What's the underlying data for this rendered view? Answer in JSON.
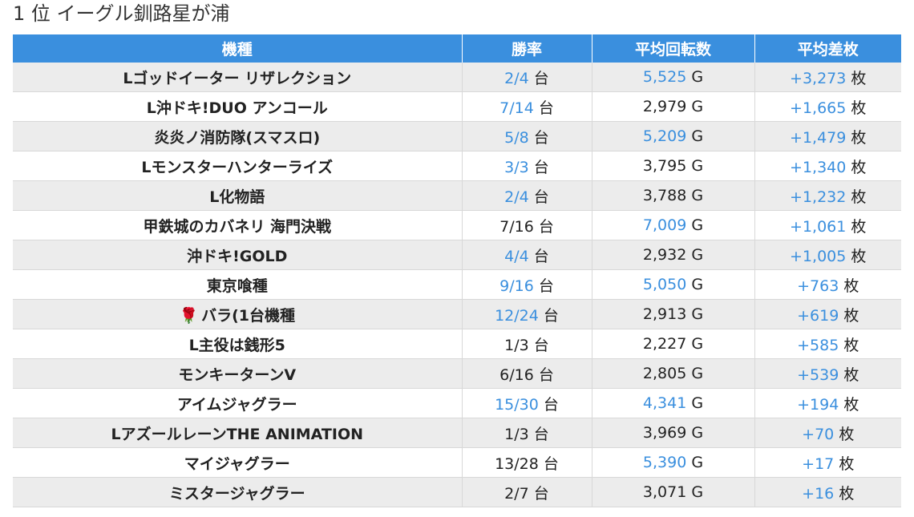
{
  "title": "1 位 イーグル釧路星が浦",
  "colors": {
    "header_bg": "#3a8fde",
    "highlight": "#3a8fde",
    "row_alt": "#ececec"
  },
  "table": {
    "headers": [
      "機種",
      "勝率",
      "平均回転数",
      "平均差枚"
    ],
    "units": {
      "win": "台",
      "spin": "G",
      "diff": "枚"
    },
    "rows": [
      {
        "model": "Lゴッドイーター リザレクション",
        "win": "2/4",
        "win_hl": true,
        "spin": "5,525",
        "spin_hl": true,
        "diff": "+3,273",
        "diff_hl": true
      },
      {
        "model": "L沖ドキ!DUO アンコール",
        "win": "7/14",
        "win_hl": true,
        "spin": "2,979",
        "spin_hl": false,
        "diff": "+1,665",
        "diff_hl": true
      },
      {
        "model": "炎炎ノ消防隊(スマスロ)",
        "win": "5/8",
        "win_hl": true,
        "spin": "5,209",
        "spin_hl": true,
        "diff": "+1,479",
        "diff_hl": true
      },
      {
        "model": "Lモンスターハンターライズ",
        "win": "3/3",
        "win_hl": true,
        "spin": "3,795",
        "spin_hl": false,
        "diff": "+1,340",
        "diff_hl": true
      },
      {
        "model": "L化物語",
        "win": "2/4",
        "win_hl": true,
        "spin": "3,788",
        "spin_hl": false,
        "diff": "+1,232",
        "diff_hl": true
      },
      {
        "model": "甲鉄城のカバネリ 海門決戦",
        "win": "7/16",
        "win_hl": false,
        "spin": "7,009",
        "spin_hl": true,
        "diff": "+1,061",
        "diff_hl": true
      },
      {
        "model": "沖ドキ!GOLD",
        "win": "4/4",
        "win_hl": true,
        "spin": "2,932",
        "spin_hl": false,
        "diff": "+1,005",
        "diff_hl": true
      },
      {
        "model": "東京喰種",
        "win": "9/16",
        "win_hl": true,
        "spin": "5,050",
        "spin_hl": true,
        "diff": "+763",
        "diff_hl": true
      },
      {
        "model": "バラ(1台機種",
        "rose_icon": "🌹",
        "win": "12/24",
        "win_hl": true,
        "spin": "2,913",
        "spin_hl": false,
        "diff": "+619",
        "diff_hl": true
      },
      {
        "model": "L主役は銭形5",
        "win": "1/3",
        "win_hl": false,
        "spin": "2,227",
        "spin_hl": false,
        "diff": "+585",
        "diff_hl": true
      },
      {
        "model": "モンキーターンV",
        "win": "6/16",
        "win_hl": false,
        "spin": "2,805",
        "spin_hl": false,
        "diff": "+539",
        "diff_hl": true
      },
      {
        "model": "アイムジャグラー",
        "win": "15/30",
        "win_hl": true,
        "spin": "4,341",
        "spin_hl": true,
        "diff": "+194",
        "diff_hl": true
      },
      {
        "model": "LアズールレーンTHE ANIMATION",
        "win": "1/3",
        "win_hl": false,
        "spin": "3,969",
        "spin_hl": false,
        "diff": "+70",
        "diff_hl": true
      },
      {
        "model": "マイジャグラー",
        "win": "13/28",
        "win_hl": false,
        "spin": "5,390",
        "spin_hl": true,
        "diff": "+17",
        "diff_hl": true
      },
      {
        "model": "ミスタージャグラー",
        "win": "2/7",
        "win_hl": false,
        "spin": "3,071",
        "spin_hl": false,
        "diff": "+16",
        "diff_hl": true
      }
    ]
  }
}
